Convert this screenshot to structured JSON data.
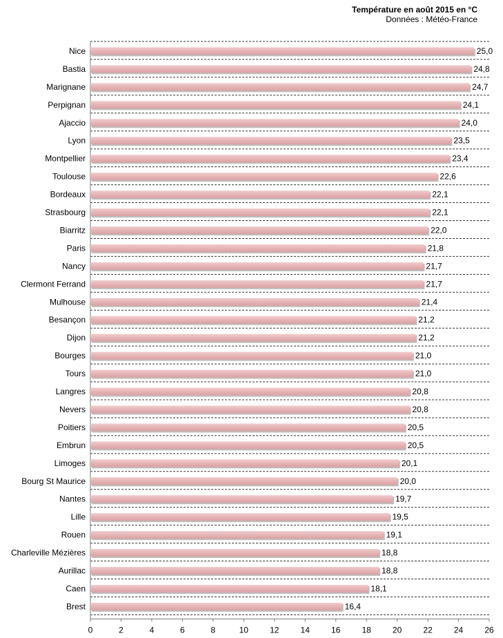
{
  "chart_data": {
    "type": "bar",
    "orientation": "horizontal",
    "title": "Température en août 2015 en °C",
    "subtitle": "Données : Météo-France",
    "xlabel": "",
    "ylabel": "",
    "xlim": [
      0,
      26
    ],
    "xticks": [
      0,
      2,
      4,
      6,
      8,
      10,
      12,
      14,
      16,
      18,
      20,
      22,
      24,
      26
    ],
    "grid": "horizontal dashed",
    "bar_color": "#e6b4b6",
    "categories": [
      "Nice",
      "Bastia",
      "Marignane",
      "Perpignan",
      "Ajaccio",
      "Lyon",
      "Montpellier",
      "Toulouse",
      "Bordeaux",
      "Strasbourg",
      "Biarritz",
      "Paris",
      "Nancy",
      "Clermont Ferrand",
      "Mulhouse",
      "Besançon",
      "Dijon",
      "Bourges",
      "Tours",
      "Langres",
      "Nevers",
      "Poitiers",
      "Embrun",
      "Limoges",
      "Bourg St Maurice",
      "Nantes",
      "Lille",
      "Rouen",
      "Charleville Mézières",
      "Aurillac",
      "Caen",
      "Brest"
    ],
    "values": [
      25.0,
      24.8,
      24.7,
      24.1,
      24.0,
      23.5,
      23.4,
      22.6,
      22.1,
      22.1,
      22.0,
      21.8,
      21.7,
      21.7,
      21.4,
      21.2,
      21.2,
      21.0,
      21.0,
      20.8,
      20.8,
      20.5,
      20.5,
      20.1,
      20.0,
      19.7,
      19.5,
      19.1,
      18.8,
      18.8,
      18.1,
      16.4
    ],
    "value_labels": [
      "25,0",
      "24,8",
      "24,7",
      "24,1",
      "24,0",
      "23,5",
      "23,4",
      "22,6",
      "22,1",
      "22,1",
      "22,0",
      "21,8",
      "21,7",
      "21,7",
      "21,4",
      "21,2",
      "21,2",
      "21,0",
      "21,0",
      "20,8",
      "20,8",
      "20,5",
      "20,5",
      "20,1",
      "20,0",
      "19,7",
      "19,5",
      "19,1",
      "18,8",
      "18,8",
      "18,1",
      "16,4"
    ]
  }
}
